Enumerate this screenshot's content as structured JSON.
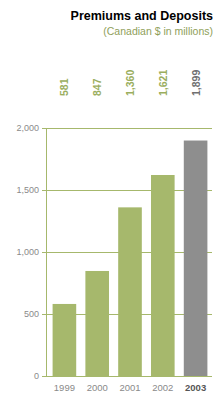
{
  "chart_data": {
    "type": "bar",
    "title": "Premiums and Deposits",
    "subtitle": "(Canadian $ in millions)",
    "categories": [
      "1999",
      "2000",
      "2001",
      "2002",
      "2003"
    ],
    "values": [
      581,
      847,
      1360,
      1621,
      1899
    ],
    "value_labels": [
      "581",
      "847",
      "1,360",
      "1,621",
      "1,899"
    ],
    "colors": [
      "#a6b86c",
      "#a6b86c",
      "#a6b86c",
      "#a6b86c",
      "#8e8e8e"
    ],
    "ylim": [
      0,
      2000
    ],
    "yticks": [
      0,
      500,
      {
        "value": 1000,
        "label": "1,000"
      },
      {
        "value": 1500,
        "label": "1,500"
      },
      {
        "value": 2000,
        "label": "2,000"
      }
    ],
    "grid": true,
    "data_labels": true
  }
}
